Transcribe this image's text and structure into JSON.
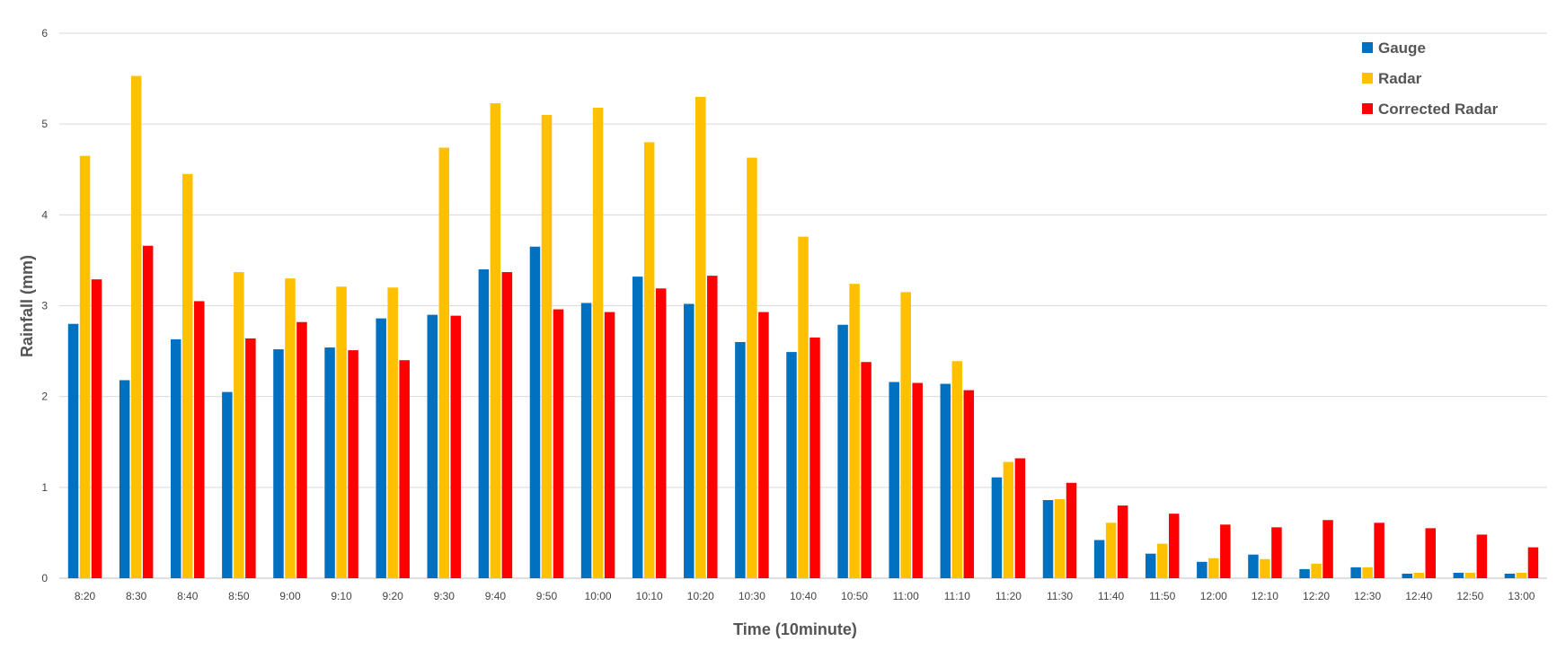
{
  "chart_data": {
    "type": "bar",
    "title": "",
    "xlabel": "Time (10minute)",
    "ylabel": "Rainfall (mm)",
    "ylim": [
      0,
      6
    ],
    "yticks": [
      "0",
      "1",
      "2",
      "3",
      "4",
      "5",
      "6"
    ],
    "grid": true,
    "legend_position": "top-right",
    "categories": [
      "8:20",
      "8:30",
      "8:40",
      "8:50",
      "9:00",
      "9:10",
      "9:20",
      "9:30",
      "9:40",
      "9:50",
      "10:00",
      "10:10",
      "10:20",
      "10:30",
      "10:40",
      "10:50",
      "11:00",
      "11:10",
      "11:20",
      "11:30",
      "11:40",
      "11:50",
      "12:00",
      "12:10",
      "12:20",
      "12:30",
      "12:40",
      "12:50",
      "13:00"
    ],
    "series": [
      {
        "name": "Gauge",
        "color": "#0070C0",
        "values": [
          2.8,
          2.18,
          2.63,
          2.05,
          2.52,
          2.54,
          2.86,
          2.9,
          3.4,
          3.65,
          3.03,
          3.32,
          3.02,
          2.6,
          2.49,
          2.79,
          2.16,
          2.14,
          1.11,
          0.86,
          0.42,
          0.27,
          0.18,
          0.26,
          0.1,
          0.12,
          0.05,
          0.06,
          0.05
        ]
      },
      {
        "name": "Radar",
        "color": "#FFC000",
        "values": [
          4.65,
          5.53,
          4.45,
          3.37,
          3.3,
          3.21,
          3.2,
          4.74,
          5.23,
          5.1,
          5.18,
          4.8,
          5.3,
          4.63,
          3.76,
          3.24,
          3.15,
          2.39,
          1.28,
          0.87,
          0.61,
          0.38,
          0.22,
          0.21,
          0.16,
          0.12,
          0.06,
          0.06,
          0.06
        ]
      },
      {
        "name": "Corrected Radar",
        "color": "#FF0000",
        "values": [
          3.29,
          3.66,
          3.05,
          2.64,
          2.82,
          2.51,
          2.4,
          2.89,
          3.37,
          2.96,
          2.93,
          3.19,
          3.33,
          2.93,
          2.65,
          2.38,
          2.15,
          2.07,
          1.32,
          1.05,
          0.8,
          0.71,
          0.59,
          0.56,
          0.64,
          0.61,
          0.55,
          0.48,
          0.34
        ]
      }
    ]
  }
}
